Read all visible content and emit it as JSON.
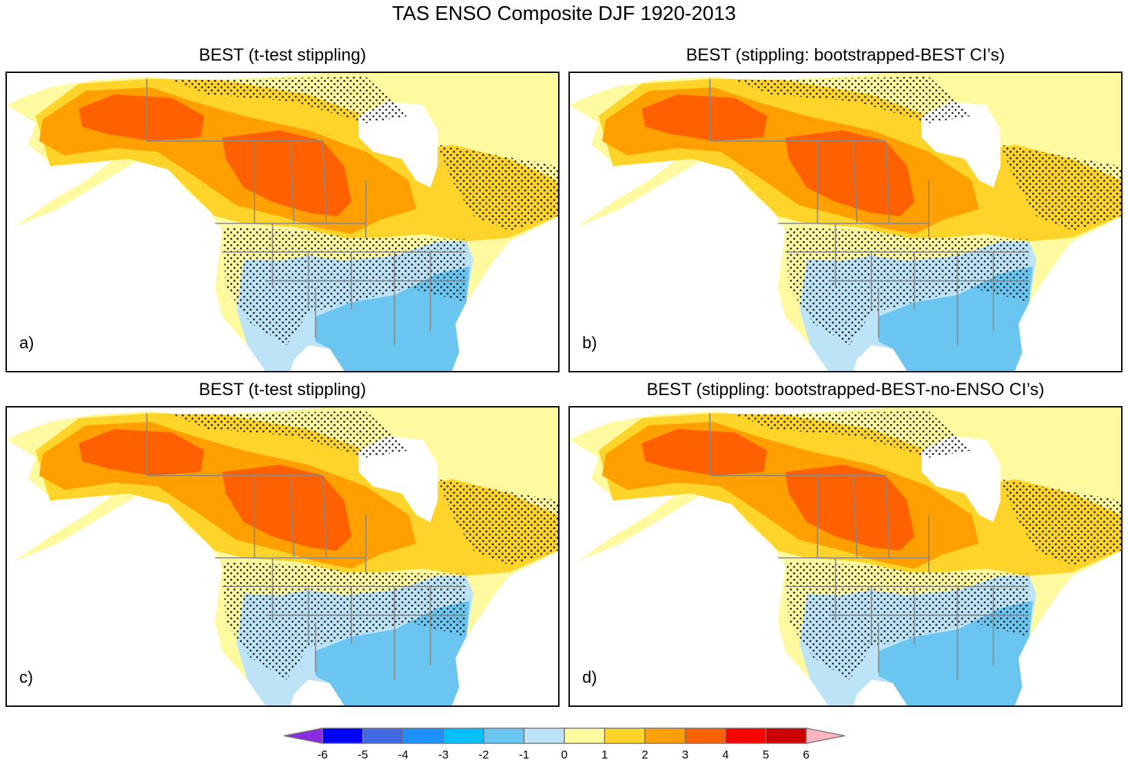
{
  "title": "TAS ENSO Composite DJF 1920-2013",
  "panels": [
    {
      "title": "BEST (t-test stippling)",
      "label": "a)"
    },
    {
      "title": "BEST (stippling: bootstrapped-BEST CI’s)",
      "label": "b)"
    },
    {
      "title": "BEST (t-test stippling)",
      "label": "c)"
    },
    {
      "title": "BEST (stippling: bootstrapped-BEST-no-ENSO CI’s)",
      "label": "d)"
    }
  ],
  "colorbar": {
    "levels": [
      -6,
      -5,
      -4,
      -3,
      -2,
      -1,
      0,
      1,
      2,
      3,
      4,
      5,
      6
    ],
    "colors": [
      "#0000ff",
      "#4169e1",
      "#1e90ff",
      "#00bfff",
      "#6ac5f0",
      "#bde3f7",
      "#fff9a0",
      "#ffd42a",
      "#ffa000",
      "#ff6000",
      "#ff0000",
      "#cc0000"
    ],
    "below_color": "#8a2be2",
    "above_color": "#ffb6c1"
  }
}
